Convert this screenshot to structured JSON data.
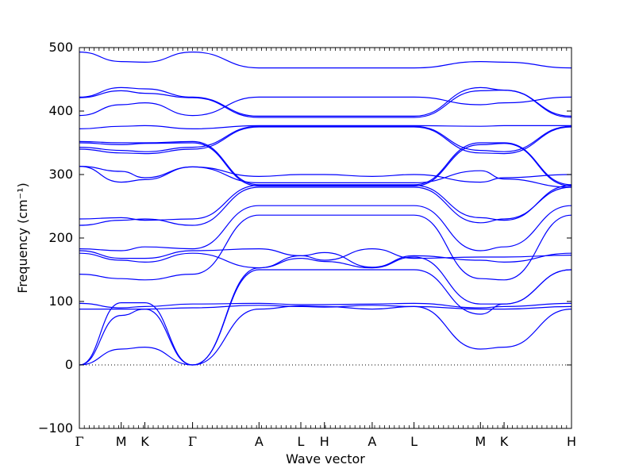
{
  "chart_data": {
    "type": "line",
    "xlabel": "Wave vector",
    "ylabel": "Frequency (cm⁻¹)",
    "ylim": [
      -100,
      500
    ],
    "yticks": [
      -100,
      0,
      100,
      200,
      300,
      400,
      500
    ],
    "xlim": [
      0,
      10
    ],
    "high_symmetry_points": [
      {
        "label": "Γ",
        "x": 0
      },
      {
        "label": "M",
        "x": 0.85
      },
      {
        "label": "K",
        "x": 1.33
      },
      {
        "label": "Γ",
        "x": 2.3
      },
      {
        "label": "A",
        "x": 3.65
      },
      {
        "label": "L",
        "x": 4.5
      },
      {
        "label": "H",
        "x": 4.98
      },
      {
        "label": "A",
        "x": 5.95
      },
      {
        "label": "L",
        "x": 6.8
      },
      {
        "label": "M",
        "x": 8.15
      },
      {
        "label": "K",
        "x": 8.63
      },
      {
        "label": "H",
        "x": 10
      }
    ],
    "zero_line": true,
    "line_color": "#0000ff",
    "branches": [
      [
        [
          0,
          0
        ],
        [
          0.85,
          78
        ],
        [
          1.33,
          88
        ],
        [
          2.3,
          0
        ],
        [
          3.65,
          150
        ],
        [
          4.5,
          150
        ],
        [
          4.98,
          150
        ],
        [
          5.95,
          150
        ],
        [
          6.8,
          150
        ],
        [
          8.15,
          80
        ],
        [
          8.63,
          96
        ],
        [
          10,
          150
        ]
      ],
      [
        [
          0,
          0
        ],
        [
          0.85,
          98
        ],
        [
          1.33,
          98
        ],
        [
          2.3,
          0
        ],
        [
          3.65,
          153
        ],
        [
          4.5,
          168
        ],
        [
          4.98,
          163
        ],
        [
          5.95,
          153
        ],
        [
          6.8,
          170
        ],
        [
          8.15,
          96
        ],
        [
          8.63,
          96
        ],
        [
          10,
          150
        ]
      ],
      [
        [
          0,
          0
        ],
        [
          0.85,
          25
        ],
        [
          1.33,
          28
        ],
        [
          2.3,
          0
        ],
        [
          3.65,
          88
        ],
        [
          4.5,
          93
        ],
        [
          4.98,
          92
        ],
        [
          5.95,
          88
        ],
        [
          6.8,
          92
        ],
        [
          8.15,
          25
        ],
        [
          8.63,
          28
        ],
        [
          10,
          88
        ]
      ],
      [
        [
          0,
          88
        ],
        [
          0.85,
          88
        ],
        [
          1.33,
          88
        ],
        [
          2.3,
          90
        ],
        [
          3.65,
          94
        ],
        [
          4.5,
          92
        ],
        [
          4.98,
          91
        ],
        [
          5.95,
          94
        ],
        [
          6.8,
          92
        ],
        [
          8.15,
          88
        ],
        [
          8.63,
          88
        ],
        [
          10,
          92
        ]
      ],
      [
        [
          0,
          97
        ],
        [
          0.85,
          90
        ],
        [
          1.33,
          92
        ],
        [
          2.3,
          96
        ],
        [
          3.65,
          97
        ],
        [
          4.5,
          95
        ],
        [
          4.98,
          95
        ],
        [
          5.95,
          96
        ],
        [
          6.8,
          97
        ],
        [
          8.15,
          90
        ],
        [
          8.63,
          92
        ],
        [
          10,
          97
        ]
      ],
      [
        [
          0,
          143
        ],
        [
          0.85,
          136
        ],
        [
          1.33,
          134
        ],
        [
          2.3,
          143
        ],
        [
          3.65,
          236
        ],
        [
          4.5,
          236
        ],
        [
          4.98,
          236
        ],
        [
          5.95,
          236
        ],
        [
          6.8,
          236
        ],
        [
          8.15,
          136
        ],
        [
          8.63,
          134
        ],
        [
          10,
          236
        ]
      ],
      [
        [
          0,
          176
        ],
        [
          0.85,
          165
        ],
        [
          1.33,
          162
        ],
        [
          2.3,
          176
        ],
        [
          3.65,
          153
        ],
        [
          4.5,
          172
        ],
        [
          4.98,
          177
        ],
        [
          5.95,
          154
        ],
        [
          6.8,
          172
        ],
        [
          8.15,
          165
        ],
        [
          8.63,
          162
        ],
        [
          10,
          176
        ]
      ],
      [
        [
          0,
          180
        ],
        [
          0.85,
          168
        ],
        [
          1.33,
          168
        ],
        [
          2.3,
          180
        ],
        [
          3.65,
          183
        ],
        [
          4.5,
          172
        ],
        [
          4.98,
          165
        ],
        [
          5.95,
          183
        ],
        [
          6.8,
          168
        ],
        [
          8.15,
          170
        ],
        [
          8.63,
          170
        ],
        [
          10,
          173
        ]
      ],
      [
        [
          0,
          183
        ],
        [
          0.85,
          180
        ],
        [
          1.33,
          186
        ],
        [
          2.3,
          183
        ],
        [
          3.65,
          251
        ],
        [
          4.5,
          251
        ],
        [
          4.98,
          251
        ],
        [
          5.95,
          251
        ],
        [
          6.8,
          251
        ],
        [
          8.15,
          180
        ],
        [
          8.63,
          186
        ],
        [
          10,
          251
        ]
      ],
      [
        [
          0,
          220
        ],
        [
          0.85,
          228
        ],
        [
          1.33,
          230
        ],
        [
          2.3,
          220
        ],
        [
          3.65,
          280
        ],
        [
          4.5,
          280
        ],
        [
          4.98,
          280
        ],
        [
          5.95,
          280
        ],
        [
          6.8,
          280
        ],
        [
          8.15,
          224
        ],
        [
          8.63,
          230
        ],
        [
          10,
          280
        ]
      ],
      [
        [
          0,
          230
        ],
        [
          0.85,
          232
        ],
        [
          1.33,
          228
        ],
        [
          2.3,
          230
        ],
        [
          3.65,
          283
        ],
        [
          4.5,
          283
        ],
        [
          4.98,
          283
        ],
        [
          5.95,
          283
        ],
        [
          6.8,
          283
        ],
        [
          8.15,
          232
        ],
        [
          8.63,
          228
        ],
        [
          10,
          283
        ]
      ],
      [
        [
          0,
          313
        ],
        [
          0.85,
          288
        ],
        [
          1.33,
          292
        ],
        [
          2.3,
          312
        ],
        [
          3.65,
          287
        ],
        [
          4.5,
          287
        ],
        [
          4.98,
          287
        ],
        [
          5.95,
          287
        ],
        [
          6.8,
          287
        ],
        [
          8.15,
          306
        ],
        [
          8.63,
          293
        ],
        [
          10,
          280
        ]
      ],
      [
        [
          0,
          313
        ],
        [
          0.85,
          305
        ],
        [
          1.33,
          295
        ],
        [
          2.3,
          312
        ],
        [
          3.65,
          297
        ],
        [
          4.5,
          300
        ],
        [
          4.98,
          300
        ],
        [
          5.95,
          297
        ],
        [
          6.8,
          300
        ],
        [
          8.15,
          288
        ],
        [
          8.63,
          295
        ],
        [
          10,
          300
        ]
      ],
      [
        [
          0,
          340
        ],
        [
          0.85,
          334
        ],
        [
          1.33,
          333
        ],
        [
          2.3,
          340
        ],
        [
          3.65,
          375
        ],
        [
          4.5,
          375
        ],
        [
          4.98,
          375
        ],
        [
          5.95,
          375
        ],
        [
          6.8,
          375
        ],
        [
          8.15,
          334
        ],
        [
          8.63,
          333
        ],
        [
          10,
          375
        ]
      ],
      [
        [
          0,
          343
        ],
        [
          0.85,
          338
        ],
        [
          1.33,
          336
        ],
        [
          2.3,
          343
        ],
        [
          3.65,
          376
        ],
        [
          4.5,
          376
        ],
        [
          4.98,
          376
        ],
        [
          5.95,
          376
        ],
        [
          6.8,
          376
        ],
        [
          8.15,
          338
        ],
        [
          8.63,
          336
        ],
        [
          10,
          376
        ]
      ],
      [
        [
          0,
          350
        ],
        [
          0.85,
          347
        ],
        [
          1.33,
          349
        ],
        [
          2.3,
          350
        ],
        [
          3.65,
          282
        ],
        [
          4.5,
          282
        ],
        [
          4.98,
          282
        ],
        [
          5.95,
          282
        ],
        [
          6.8,
          282
        ],
        [
          8.15,
          347
        ],
        [
          8.63,
          349
        ],
        [
          10,
          282
        ]
      ],
      [
        [
          0,
          352
        ],
        [
          0.85,
          350
        ],
        [
          1.33,
          350
        ],
        [
          2.3,
          352
        ],
        [
          3.65,
          284
        ],
        [
          4.5,
          284
        ],
        [
          4.98,
          284
        ],
        [
          5.95,
          284
        ],
        [
          6.8,
          284
        ],
        [
          8.15,
          350
        ],
        [
          8.63,
          350
        ],
        [
          10,
          284
        ]
      ],
      [
        [
          0,
          372
        ],
        [
          0.85,
          376
        ],
        [
          1.33,
          377
        ],
        [
          2.3,
          372
        ],
        [
          3.65,
          377
        ],
        [
          4.5,
          377
        ],
        [
          4.98,
          377
        ],
        [
          5.95,
          377
        ],
        [
          6.8,
          377
        ],
        [
          8.15,
          376
        ],
        [
          8.63,
          377
        ],
        [
          10,
          377
        ]
      ],
      [
        [
          0,
          393
        ],
        [
          0.85,
          410
        ],
        [
          1.33,
          413
        ],
        [
          2.3,
          393
        ],
        [
          3.65,
          422
        ],
        [
          4.5,
          422
        ],
        [
          4.98,
          422
        ],
        [
          5.95,
          422
        ],
        [
          6.8,
          422
        ],
        [
          8.15,
          410
        ],
        [
          8.63,
          413
        ],
        [
          10,
          422
        ]
      ],
      [
        [
          0,
          421
        ],
        [
          0.85,
          432
        ],
        [
          1.33,
          428
        ],
        [
          2.3,
          421
        ],
        [
          3.65,
          390
        ],
        [
          4.5,
          390
        ],
        [
          4.98,
          390
        ],
        [
          5.95,
          390
        ],
        [
          6.8,
          390
        ],
        [
          8.15,
          432
        ],
        [
          8.63,
          433
        ],
        [
          10,
          390
        ]
      ],
      [
        [
          0,
          422
        ],
        [
          0.85,
          437
        ],
        [
          1.33,
          435
        ],
        [
          2.3,
          422
        ],
        [
          3.65,
          392
        ],
        [
          4.5,
          392
        ],
        [
          4.98,
          392
        ],
        [
          5.95,
          392
        ],
        [
          6.8,
          392
        ],
        [
          8.15,
          437
        ],
        [
          8.63,
          433
        ],
        [
          10,
          392
        ]
      ],
      [
        [
          0,
          493
        ],
        [
          0.85,
          478
        ],
        [
          1.33,
          477
        ],
        [
          2.3,
          493
        ],
        [
          3.65,
          468
        ],
        [
          4.5,
          468
        ],
        [
          4.98,
          468
        ],
        [
          5.95,
          468
        ],
        [
          6.8,
          468
        ],
        [
          8.15,
          478
        ],
        [
          8.63,
          477
        ],
        [
          10,
          468
        ]
      ]
    ]
  }
}
